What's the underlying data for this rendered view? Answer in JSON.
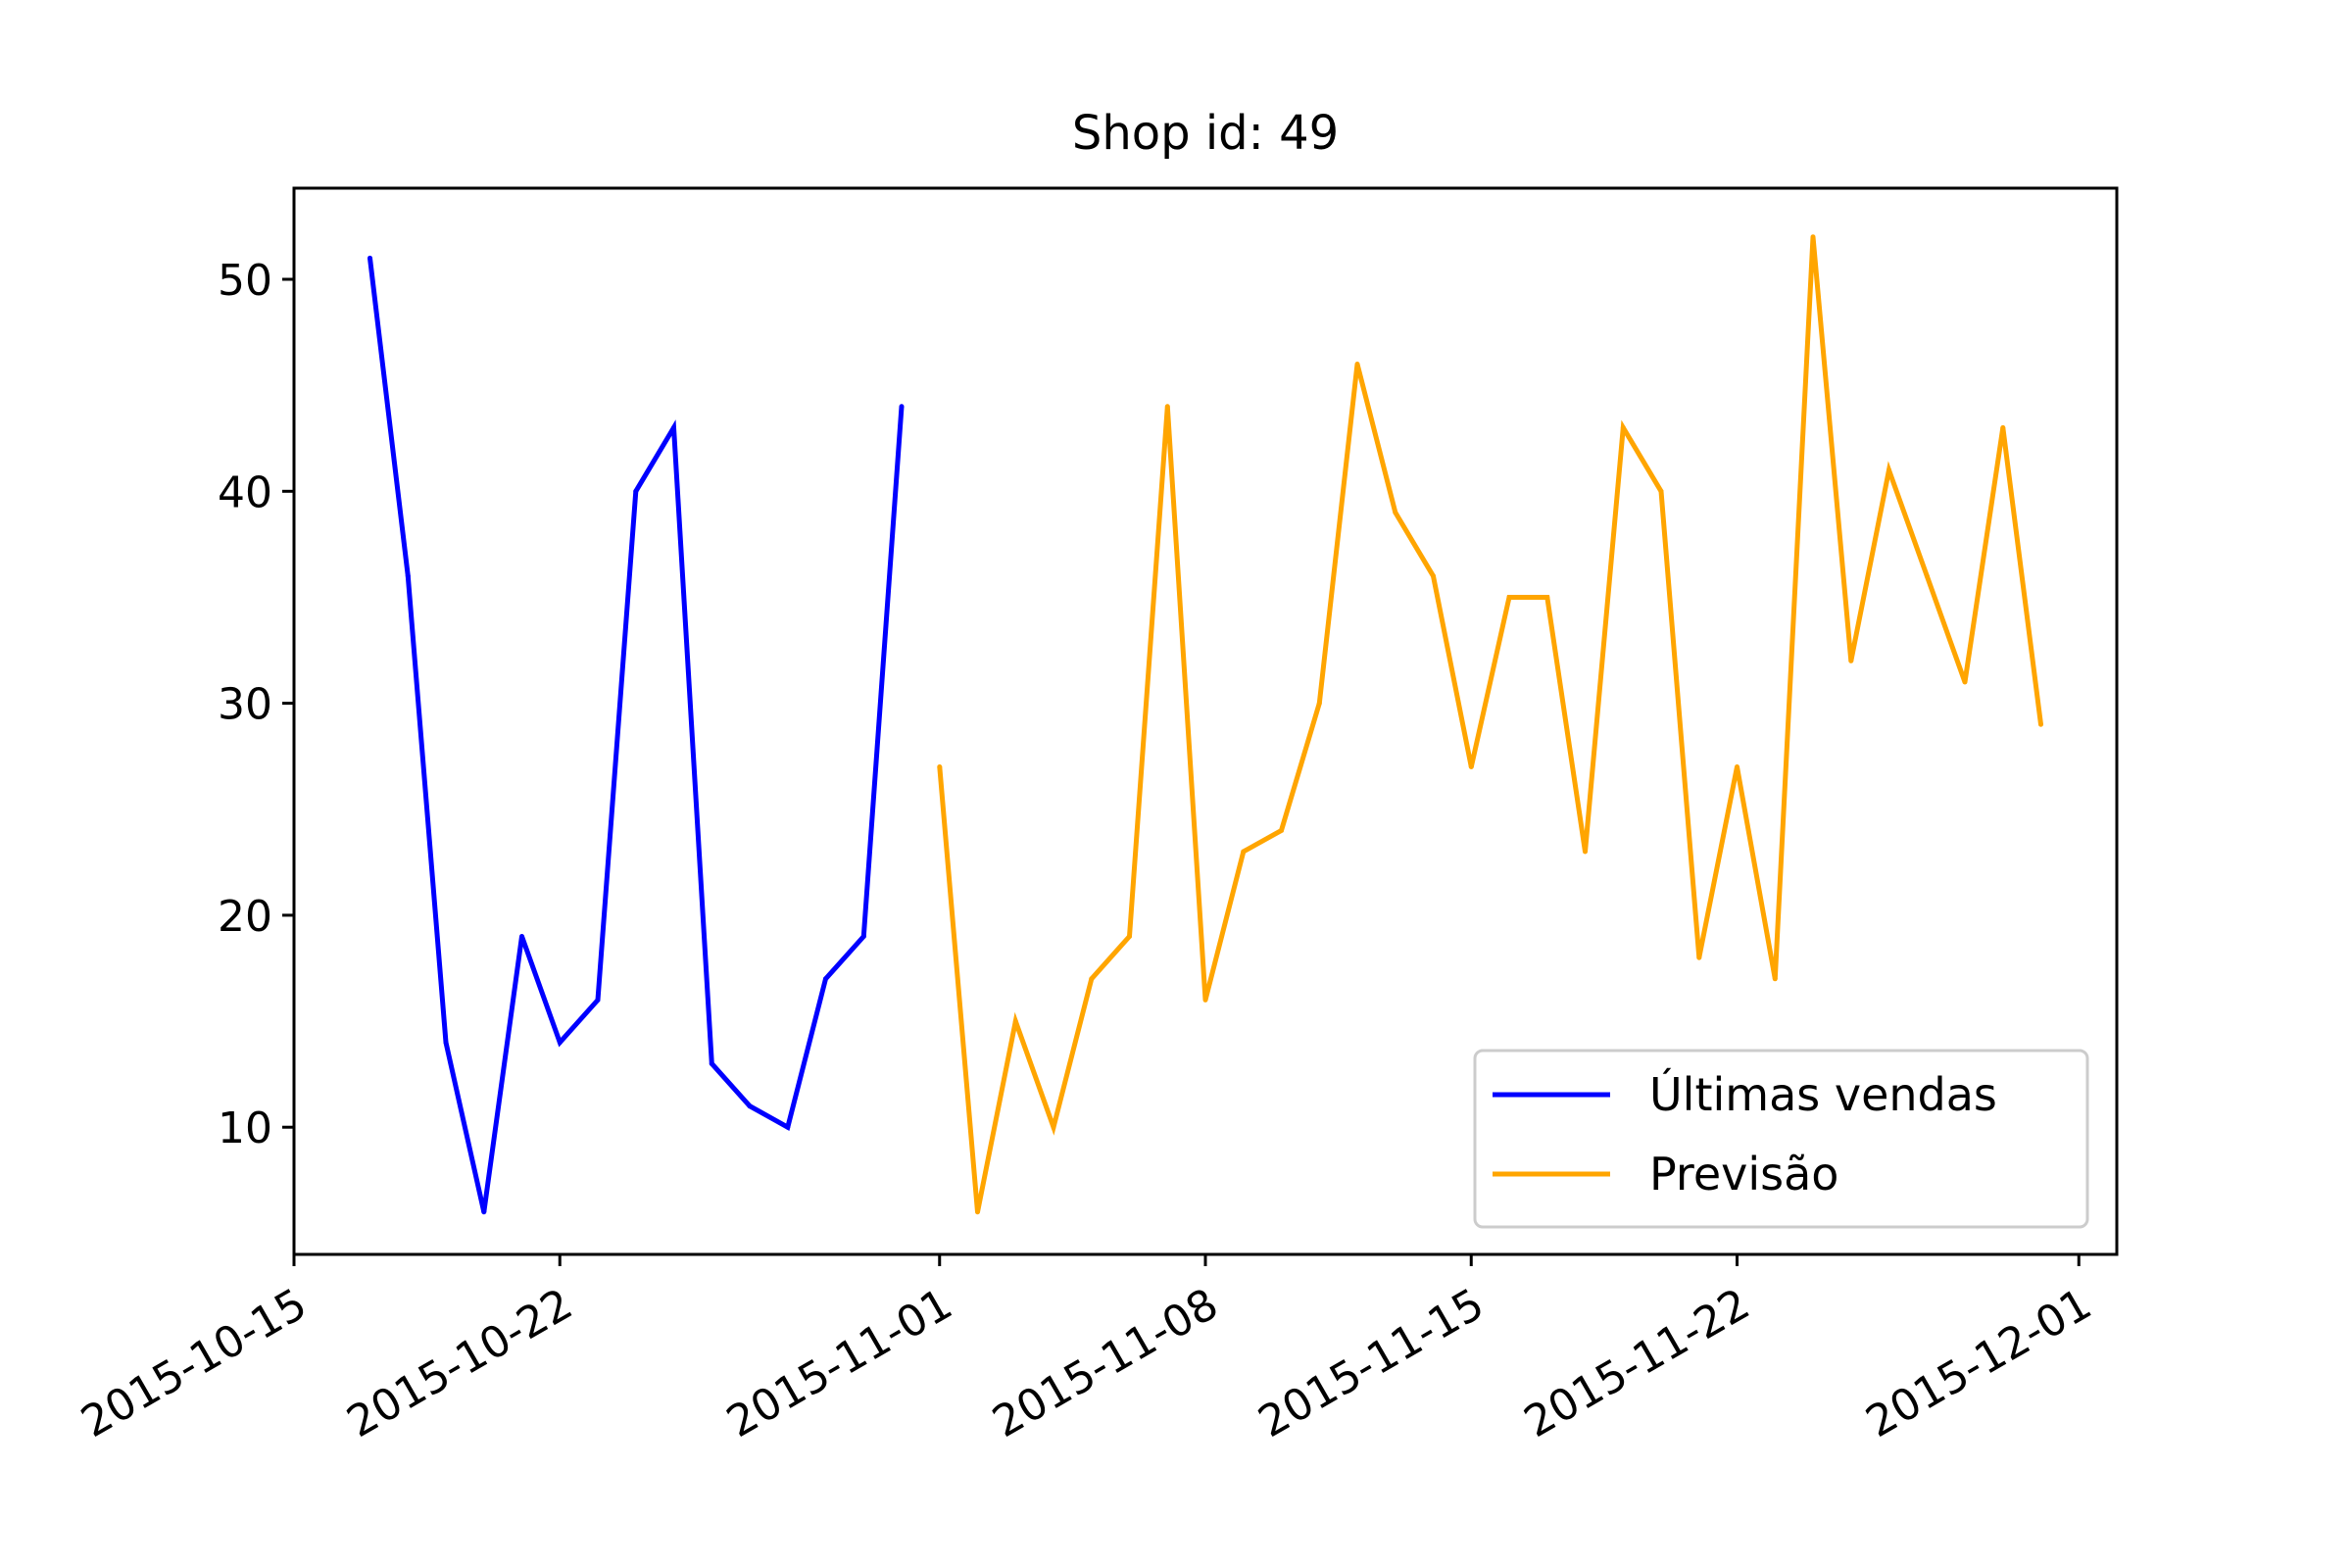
{
  "chart_data": {
    "type": "line",
    "title": "Shop id: 49",
    "xlabel": "",
    "ylabel": "",
    "x_axis_type": "date",
    "xlim": [
      "2015-10-15",
      "2015-12-02"
    ],
    "ylim": [
      4,
      54.3
    ],
    "x_ticks": [
      "2015-10-15",
      "2015-10-22",
      "2015-11-01",
      "2015-11-08",
      "2015-11-15",
      "2015-11-22",
      "2015-12-01"
    ],
    "y_ticks": [
      10,
      20,
      30,
      40,
      50
    ],
    "grid": false,
    "legend_position": "bottom-right",
    "series": [
      {
        "name": "Últimas vendas",
        "color": "#0000ff",
        "x": [
          "2015-10-17",
          "2015-10-18",
          "2015-10-19",
          "2015-10-20",
          "2015-10-21",
          "2015-10-22",
          "2015-10-23",
          "2015-10-24",
          "2015-10-25",
          "2015-10-26",
          "2015-10-27",
          "2015-10-28",
          "2015-10-29",
          "2015-10-30",
          "2015-10-31"
        ],
        "y": [
          51,
          36,
          14,
          6,
          19,
          14,
          16,
          40,
          43,
          13,
          11,
          10,
          17,
          19,
          44
        ]
      },
      {
        "name": "Previsão",
        "color": "#ffa500",
        "x": [
          "2015-11-01",
          "2015-11-02",
          "2015-11-03",
          "2015-11-04",
          "2015-11-05",
          "2015-11-06",
          "2015-11-07",
          "2015-11-08",
          "2015-11-09",
          "2015-11-10",
          "2015-11-11",
          "2015-11-12",
          "2015-11-13",
          "2015-11-14",
          "2015-11-15",
          "2015-11-16",
          "2015-11-17",
          "2015-11-18",
          "2015-11-19",
          "2015-11-20",
          "2015-11-21",
          "2015-11-22",
          "2015-11-23",
          "2015-11-24",
          "2015-11-25",
          "2015-11-26",
          "2015-11-27",
          "2015-11-28",
          "2015-11-29",
          "2015-11-30"
        ],
        "y": [
          27,
          6,
          15,
          10,
          17,
          19,
          44,
          16,
          23,
          24,
          30,
          46,
          39,
          36,
          27,
          35,
          35,
          23,
          43,
          40,
          18,
          27,
          17,
          52,
          32,
          41,
          36,
          31,
          43,
          29
        ]
      }
    ]
  }
}
